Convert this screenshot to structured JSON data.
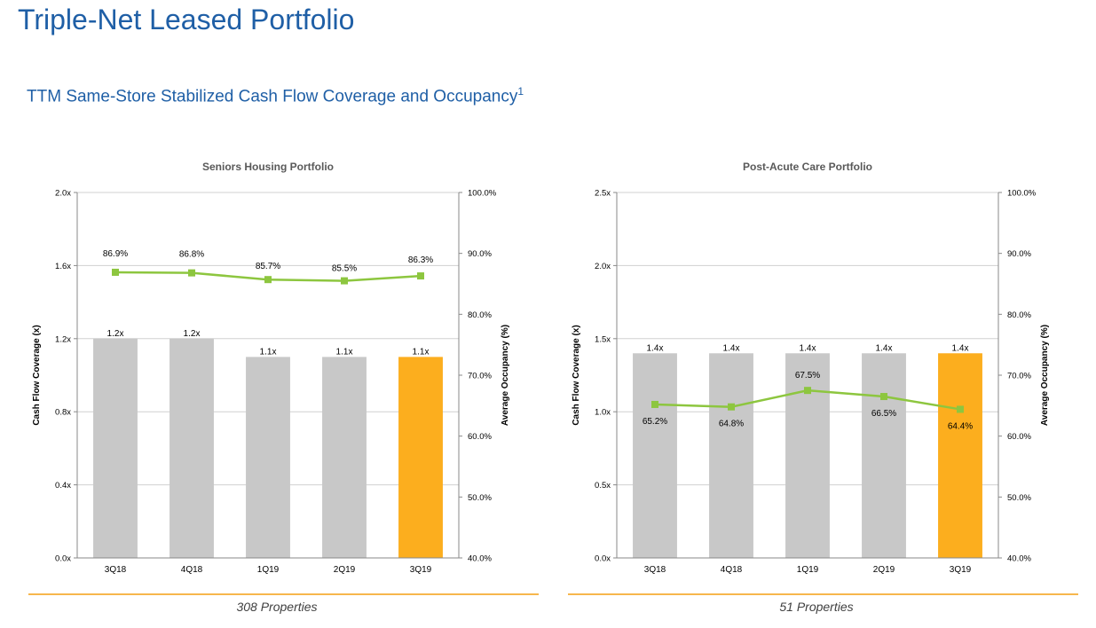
{
  "page": {
    "title": "Triple-Net Leased Portfolio",
    "subtitle": "TTM Same-Store Stabilized Cash Flow Coverage and Occupancy",
    "subtitle_footnote": "1"
  },
  "colors": {
    "title": "#1f5fa6",
    "bar_gray": "#c8c8c8",
    "bar_highlight": "#fcae1e",
    "line": "#8dc63f",
    "footer_rule": "#f7b74d"
  },
  "chart_data": [
    {
      "type": "bar",
      "title": "Seniors Housing Portfolio",
      "categories": [
        "3Q18",
        "4Q18",
        "1Q19",
        "2Q19",
        "3Q19"
      ],
      "ylabel": "Cash Flow Coverage (x)",
      "ylabel2": "Average Occupancy (%)",
      "ylim": [
        0,
        2.0
      ],
      "y_ticks": [
        "0.0x",
        "0.4x",
        "0.8x",
        "1.2x",
        "1.6x",
        "2.0x"
      ],
      "y2lim": [
        40,
        100
      ],
      "y2_ticks": [
        "40.0%",
        "50.0%",
        "60.0%",
        "70.0%",
        "80.0%",
        "90.0%",
        "100.0%"
      ],
      "series": [
        {
          "name": "Cash Flow Coverage",
          "kind": "bar",
          "values": [
            1.2,
            1.2,
            1.1,
            1.1,
            1.1
          ],
          "labels": [
            "1.2x",
            "1.2x",
            "1.1x",
            "1.1x",
            "1.1x"
          ],
          "highlight_index": 4
        },
        {
          "name": "Average Occupancy",
          "kind": "line",
          "axis": "right",
          "values": [
            86.9,
            86.8,
            85.7,
            85.5,
            86.3
          ],
          "labels": [
            "86.9%",
            "86.8%",
            "85.7%",
            "85.5%",
            "86.3%"
          ]
        }
      ],
      "footer": "308 Properties"
    },
    {
      "type": "bar",
      "title": "Post-Acute Care Portfolio",
      "categories": [
        "3Q18",
        "4Q18",
        "1Q19",
        "2Q19",
        "3Q19"
      ],
      "ylabel": "Cash Flow Coverage (x)",
      "ylabel2": "Average Occupancy (%)",
      "ylim": [
        0,
        2.5
      ],
      "y_ticks": [
        "0.0x",
        "0.5x",
        "1.0x",
        "1.5x",
        "2.0x",
        "2.5x"
      ],
      "y2lim": [
        40,
        100
      ],
      "y2_ticks": [
        "40.0%",
        "50.0%",
        "60.0%",
        "70.0%",
        "80.0%",
        "90.0%",
        "100.0%"
      ],
      "series": [
        {
          "name": "Cash Flow Coverage",
          "kind": "bar",
          "values": [
            1.4,
            1.4,
            1.4,
            1.4,
            1.4
          ],
          "labels": [
            "1.4x",
            "1.4x",
            "1.4x",
            "1.4x",
            "1.4x"
          ],
          "highlight_index": 4
        },
        {
          "name": "Average Occupancy",
          "kind": "line",
          "axis": "right",
          "values": [
            65.2,
            64.8,
            67.5,
            66.5,
            64.4
          ],
          "labels": [
            "65.2%",
            "64.8%",
            "67.5%",
            "66.5%",
            "64.4%"
          ]
        }
      ],
      "footer": "51 Properties"
    }
  ]
}
